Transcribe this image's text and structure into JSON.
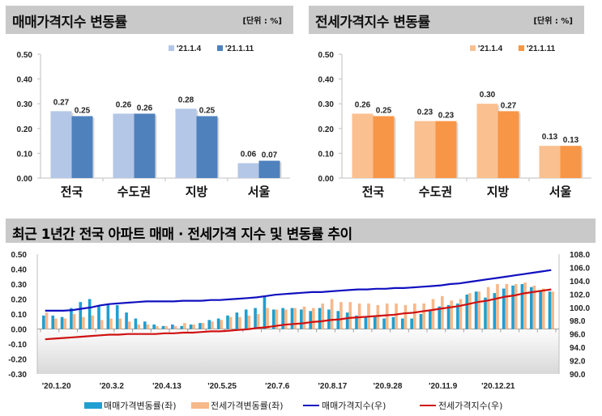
{
  "sale_panel": {
    "title": "매매가격지수 변동률",
    "unit": "[단위 : %]"
  },
  "jeonse_panel": {
    "title": "전세가격지수 변동률",
    "unit": "[단위 : %]"
  },
  "trend_panel": {
    "title": "최근 1년간 전국 아파트 매매 · 전세가격 지수 및 변동률 추이"
  },
  "colors": {
    "sale_prev": "#b4c7e7",
    "sale_curr": "#4f81bd",
    "jeonse_prev": "#fac090",
    "jeonse_curr": "#f79646",
    "sale_rate_bar": "#1f9fd0",
    "jeonse_rate_bar": "#f7b88a",
    "sale_index_line": "#1010c0",
    "jeonse_index_line": "#d01010",
    "title_bg": "#c9c9c9"
  },
  "chart_data": [
    {
      "type": "bar",
      "title": "매매가격지수 변동률",
      "categories": [
        "전국",
        "수도권",
        "지방",
        "서울"
      ],
      "series": [
        {
          "name": "'21.1.4",
          "values": [
            0.27,
            0.26,
            0.28,
            0.06
          ]
        },
        {
          "name": "'21.1.11",
          "values": [
            0.25,
            0.26,
            0.25,
            0.07
          ]
        }
      ],
      "yticks": [
        "0.00",
        "0.10",
        "0.20",
        "0.30",
        "0.40",
        "0.50"
      ],
      "ylim": [
        0,
        0.5
      ],
      "legend": "top-right",
      "grid": false
    },
    {
      "type": "bar",
      "title": "전세가격지수 변동률",
      "categories": [
        "전국",
        "수도권",
        "지방",
        "서울"
      ],
      "series": [
        {
          "name": "'21.1.4",
          "values": [
            0.26,
            0.23,
            0.3,
            0.13
          ]
        },
        {
          "name": "'21.1.11",
          "values": [
            0.25,
            0.23,
            0.27,
            0.13
          ]
        }
      ],
      "yticks": [
        "0.00",
        "0.10",
        "0.20",
        "0.30",
        "0.40",
        "0.50"
      ],
      "ylim": [
        0,
        0.5
      ],
      "legend": "top-right",
      "grid": false
    },
    {
      "type": "bar+line",
      "title": "최근 1년간 전국 아파트 매매 · 전세가격 지수 및 변동률 추이",
      "xticks": [
        "'20.1.20",
        "'20.3.2",
        "'20.4.13",
        "'20.5.25",
        "'20.7.6",
        "'20.8.17",
        "'20.9.28",
        "'20.11.9",
        "'20.12.21"
      ],
      "yticks_left": [
        "0.50",
        "0.40",
        "0.30",
        "0.20",
        "0.10",
        "0.00",
        "-0.10",
        "-0.20",
        "-0.30"
      ],
      "yticks_right": [
        "108.0",
        "106.0",
        "104.0",
        "102.0",
        "100.0",
        "98.0",
        "96.0",
        "94.0",
        "92.0",
        "90.0"
      ],
      "ylim_left": [
        -0.3,
        0.5
      ],
      "ylim_right": [
        90,
        108
      ],
      "legend": "bottom",
      "series": [
        {
          "name": "매매가격변동률(좌)",
          "axis": "left",
          "kind": "bar",
          "values": [
            0.09,
            0.09,
            0.08,
            0.14,
            0.18,
            0.2,
            0.16,
            0.16,
            0.16,
            0.11,
            0.07,
            0.05,
            0.03,
            0.02,
            0.03,
            0.02,
            0.03,
            0.04,
            0.06,
            0.07,
            0.09,
            0.11,
            0.13,
            0.14,
            0.22,
            0.13,
            0.14,
            0.14,
            0.13,
            0.12,
            0.14,
            0.13,
            0.12,
            0.11,
            0.09,
            0.08,
            0.08,
            0.07,
            0.08,
            0.07,
            0.07,
            0.1,
            0.12,
            0.15,
            0.16,
            0.17,
            0.23,
            0.25,
            0.21,
            0.24,
            0.27,
            0.29,
            0.3,
            0.28,
            0.26,
            0.25
          ]
        },
        {
          "name": "전세가격변동률(좌)",
          "axis": "left",
          "kind": "bar",
          "values": [
            0.11,
            0.07,
            0.07,
            0.1,
            0.08,
            0.09,
            0.06,
            0.07,
            0.07,
            0.05,
            0.03,
            0.03,
            0.02,
            0.02,
            0.02,
            0.04,
            0.03,
            0.04,
            0.05,
            0.06,
            0.08,
            0.08,
            0.09,
            0.1,
            0.14,
            0.13,
            0.13,
            0.14,
            0.15,
            0.14,
            0.17,
            0.2,
            0.18,
            0.18,
            0.17,
            0.17,
            0.16,
            0.17,
            0.17,
            0.16,
            0.17,
            0.17,
            0.2,
            0.22,
            0.19,
            0.2,
            0.24,
            0.25,
            0.28,
            0.3,
            0.3,
            0.3,
            0.31,
            0.29,
            0.27,
            0.25
          ]
        },
        {
          "name": "매매가격지수(우)",
          "axis": "right",
          "kind": "line",
          "values": [
            99.5,
            99.5,
            99.5,
            99.6,
            99.8,
            100.0,
            100.3,
            100.5,
            100.6,
            100.7,
            100.8,
            100.9,
            100.9,
            100.9,
            100.9,
            101.0,
            101.0,
            101.0,
            101.1,
            101.1,
            101.2,
            101.3,
            101.4,
            101.5,
            101.7,
            101.9,
            102.0,
            102.1,
            102.2,
            102.3,
            102.3,
            102.4,
            102.5,
            102.6,
            102.7,
            102.7,
            102.8,
            102.8,
            102.9,
            102.9,
            103.0,
            103.1,
            103.2,
            103.3,
            103.5,
            103.6,
            103.8,
            104.0,
            104.2,
            104.4,
            104.6,
            104.8,
            105.0,
            105.2,
            105.4,
            105.6
          ]
        },
        {
          "name": "전세가격지수(우)",
          "axis": "right",
          "kind": "line",
          "values": [
            95.2,
            95.3,
            95.4,
            95.5,
            95.6,
            95.7,
            95.8,
            95.9,
            95.9,
            96.0,
            96.0,
            96.0,
            96.0,
            96.1,
            96.1,
            96.2,
            96.2,
            96.3,
            96.4,
            96.4,
            96.5,
            96.6,
            96.7,
            96.9,
            97.0,
            97.2,
            97.4,
            97.5,
            97.6,
            97.8,
            97.9,
            98.1,
            98.2,
            98.4,
            98.5,
            98.6,
            98.7,
            98.8,
            98.9,
            99.1,
            99.2,
            99.4,
            99.6,
            99.8,
            100.0,
            100.2,
            100.5,
            100.8,
            101.0,
            101.3,
            101.6,
            101.8,
            102.1,
            102.3,
            102.5,
            102.7
          ]
        }
      ]
    }
  ]
}
